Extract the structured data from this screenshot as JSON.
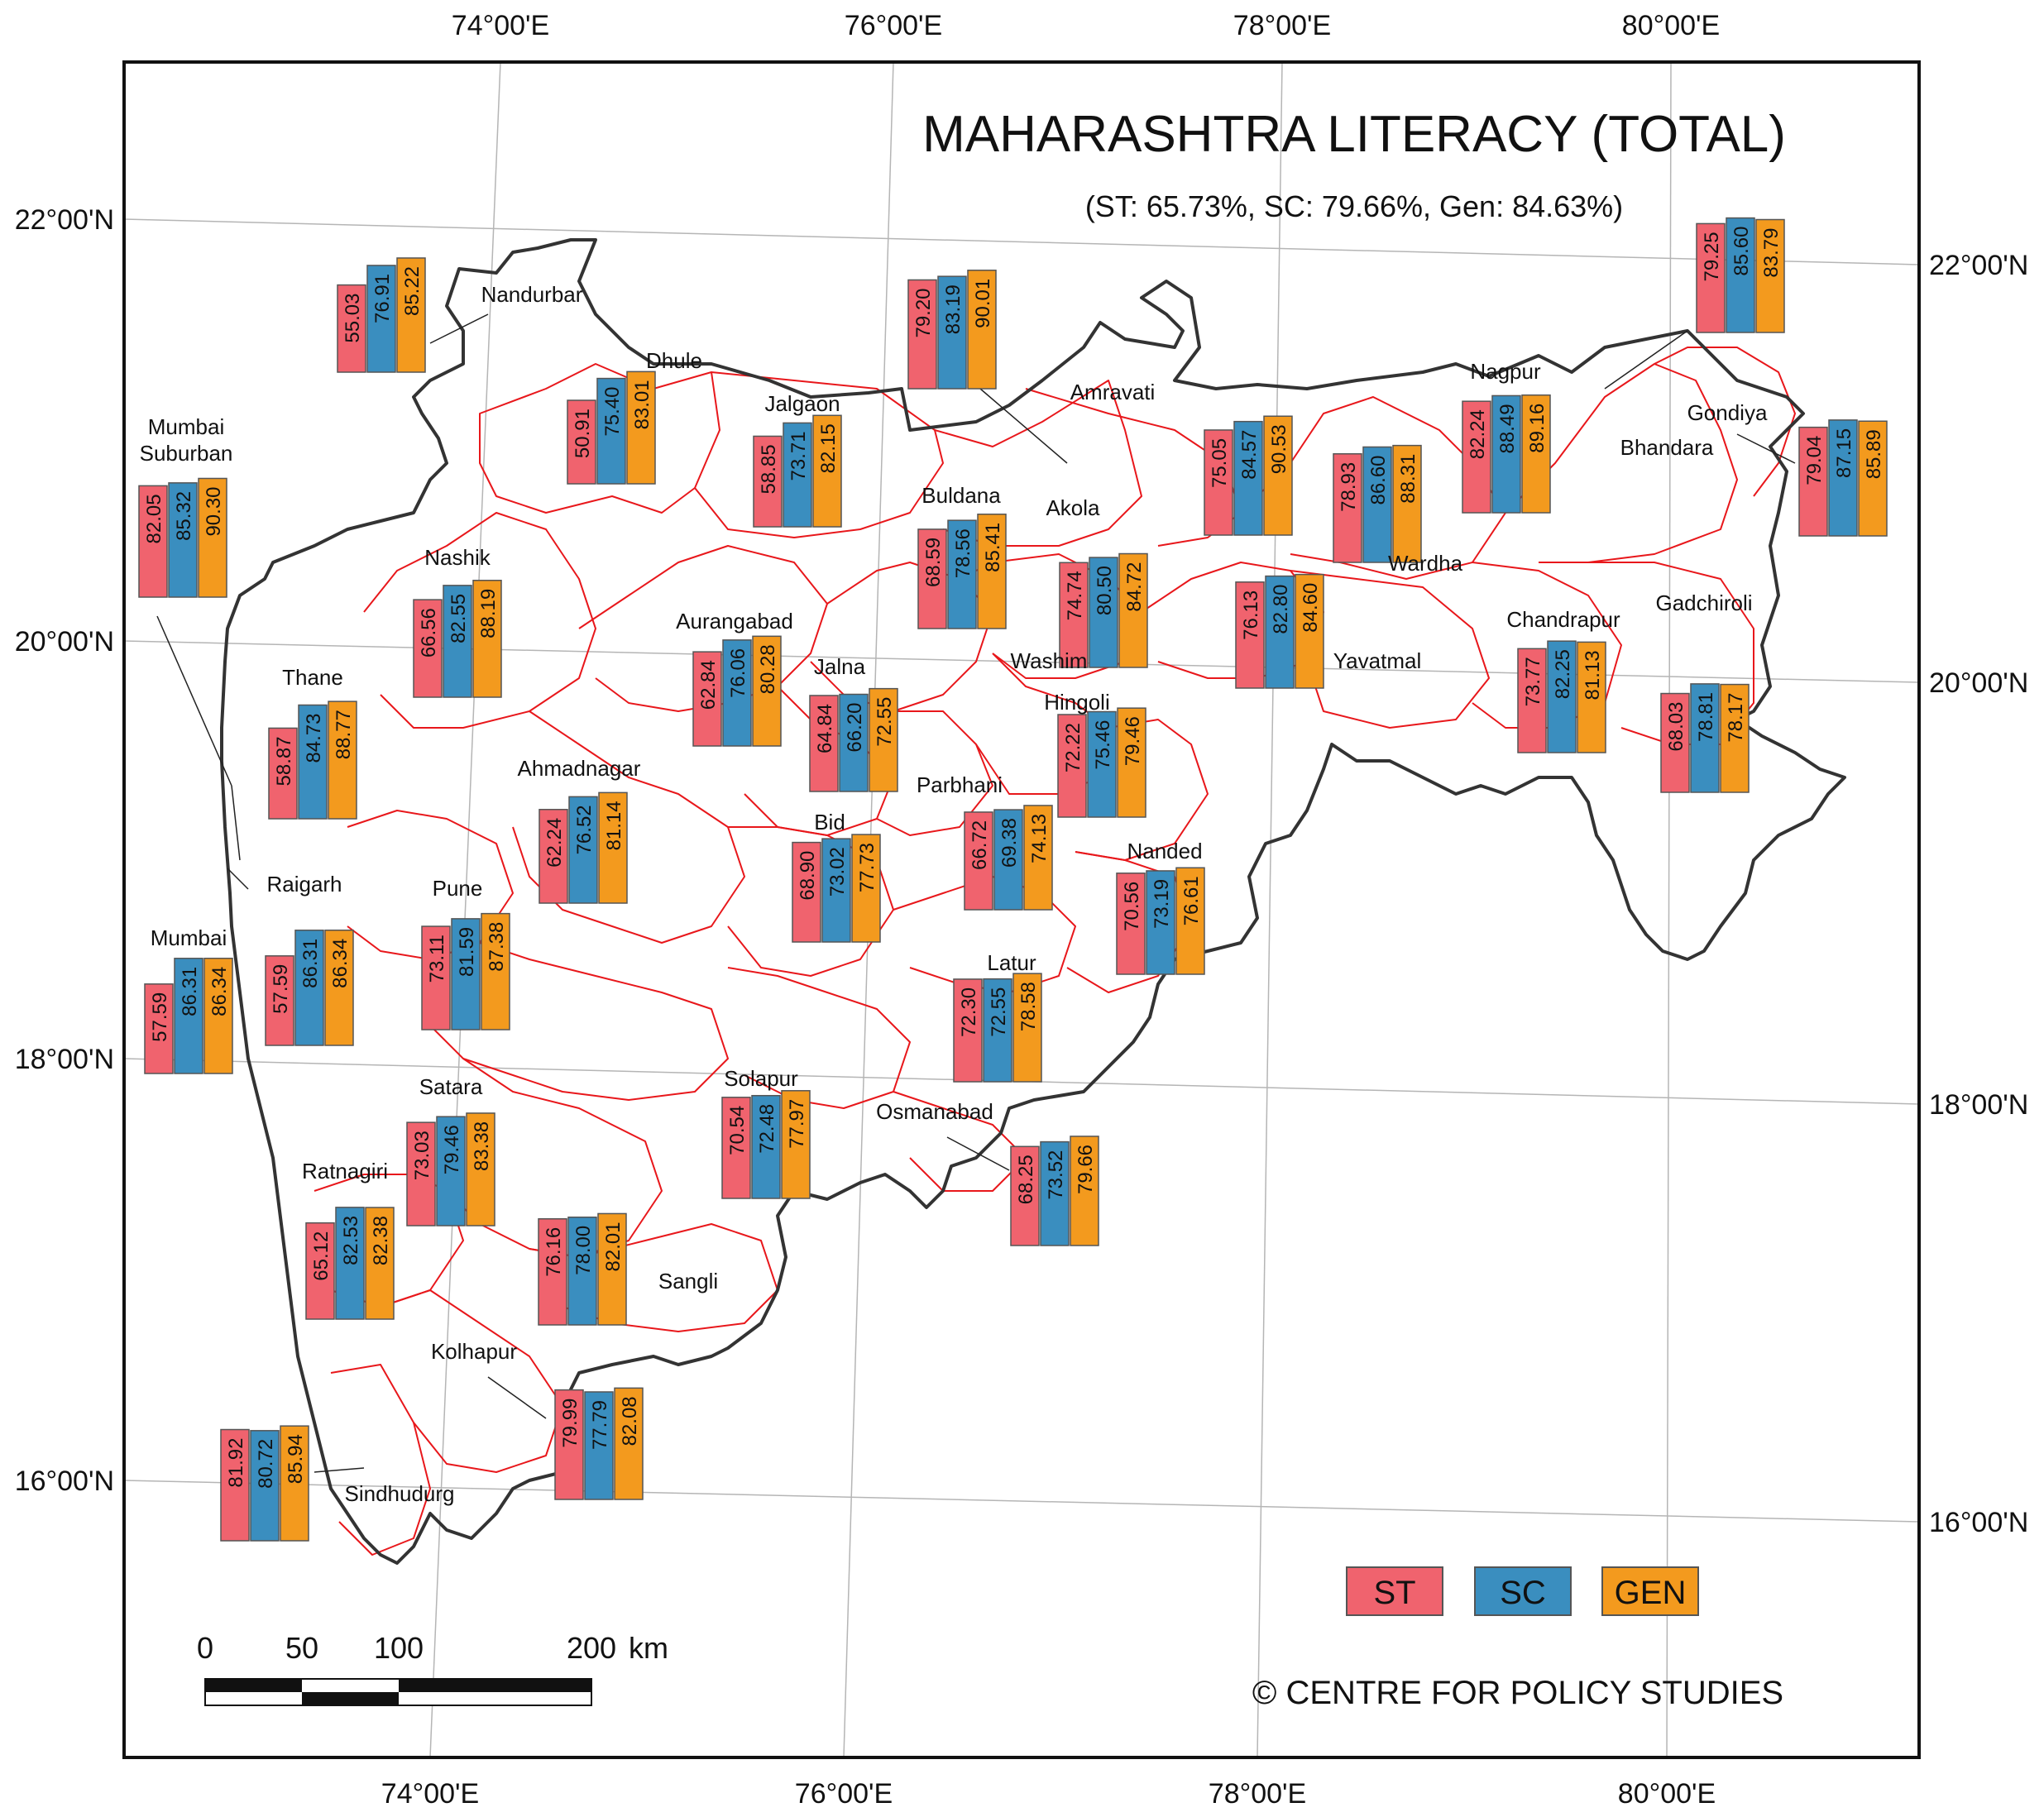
{
  "title": "MAHARASHTRA LITERACY (TOTAL)",
  "subtitle": "(ST: 65.73%, SC: 79.66%, Gen: 84.63%)",
  "credit": "© CENTRE FOR POLICY STUDIES",
  "legend": [
    {
      "label": "ST",
      "color": "#f0636e"
    },
    {
      "label": "SC",
      "color": "#3a8ebf"
    },
    {
      "label": "GEN",
      "color": "#f39a1e"
    }
  ],
  "colors": {
    "st": "#f0636e",
    "sc": "#3a8ebf",
    "gen": "#f39a1e",
    "state_border": "#333333",
    "district_border": "#e8171b",
    "graticule": "#b5b5b5"
  },
  "lon_labels": [
    "74°00'E",
    "76°00'E",
    "78°00'E",
    "80°00'E"
  ],
  "lat_labels": [
    "22°00'N",
    "20°00'N",
    "18°00'N",
    "16°00'N"
  ],
  "scale_bar": {
    "ticks": [
      "0",
      "50",
      "100",
      "200"
    ],
    "unit": "km"
  },
  "districts": [
    {
      "name": "Nandurbar",
      "st": "55.03",
      "sc": "76.91",
      "gen": "85.22"
    },
    {
      "name": "Dhule",
      "st": "50.91",
      "sc": "75.40",
      "gen": "83.01"
    },
    {
      "name": "Jalgaon",
      "st": "58.85",
      "sc": "73.71",
      "gen": "82.15"
    },
    {
      "name": "Amravati",
      "st": "79.20",
      "sc": "83.19",
      "gen": "90.01"
    },
    {
      "name": "Nagpur",
      "st": "82.24",
      "sc": "88.49",
      "gen": "89.16"
    },
    {
      "name": "Bhandara",
      "st": "79.25",
      "sc": "85.60",
      "gen": "83.79"
    },
    {
      "name": "Gondiya",
      "st": "79.04",
      "sc": "87.15",
      "gen": "85.89"
    },
    {
      "name": "Mumbai Suburban",
      "st": "82.05",
      "sc": "85.32",
      "gen": "90.30"
    },
    {
      "name": "Nashik",
      "st": "66.56",
      "sc": "82.55",
      "gen": "88.19"
    },
    {
      "name": "Buldana",
      "st": "68.59",
      "sc": "78.56",
      "gen": "85.41"
    },
    {
      "name": "Akola",
      "st": "75.05",
      "sc": "84.57",
      "gen": "90.53"
    },
    {
      "name": "Wardha",
      "st": "78.93",
      "sc": "86.60",
      "gen": "88.31"
    },
    {
      "name": "Thane",
      "st": "58.87",
      "sc": "84.73",
      "gen": "88.77"
    },
    {
      "name": "Aurangabad",
      "st": "62.84",
      "sc": "76.06",
      "gen": "80.28"
    },
    {
      "name": "Washim",
      "st": "74.74",
      "sc": "80.50",
      "gen": "84.72"
    },
    {
      "name": "Yavatmal",
      "st": "76.13",
      "sc": "82.80",
      "gen": "84.60"
    },
    {
      "name": "Chandrapur",
      "st": "73.77",
      "sc": "82.25",
      "gen": "81.13"
    },
    {
      "name": "Gadchiroli",
      "st": "68.03",
      "sc": "78.81",
      "gen": "78.17"
    },
    {
      "name": "Jalna",
      "st": "64.84",
      "sc": "66.20",
      "gen": "72.55"
    },
    {
      "name": "Hingoli",
      "st": "72.22",
      "sc": "75.46",
      "gen": "79.46"
    },
    {
      "name": "Ahmadnagar",
      "st": "62.24",
      "sc": "76.52",
      "gen": "81.14"
    },
    {
      "name": "Parbhani",
      "st": "66.72",
      "sc": "69.38",
      "gen": "74.13"
    },
    {
      "name": "Bid",
      "st": "68.90",
      "sc": "73.02",
      "gen": "77.73"
    },
    {
      "name": "Nanded",
      "st": "70.56",
      "sc": "73.19",
      "gen": "76.61"
    },
    {
      "name": "Raigarh",
      "st": "57.59",
      "sc": "86.31",
      "gen": "86.34"
    },
    {
      "name": "Mumbai",
      "st": "57.59",
      "sc": "86.31",
      "gen": "86.34"
    },
    {
      "name": "Pune",
      "st": "73.11",
      "sc": "81.59",
      "gen": "87.38"
    },
    {
      "name": "Latur",
      "st": "72.30",
      "sc": "72.55",
      "gen": "78.58"
    },
    {
      "name": "Satara",
      "st": "73.03",
      "sc": "79.46",
      "gen": "83.38"
    },
    {
      "name": "Solapur",
      "st": "70.54",
      "sc": "72.48",
      "gen": "77.97"
    },
    {
      "name": "Osmanabad",
      "st": "68.25",
      "sc": "73.52",
      "gen": "79.66"
    },
    {
      "name": "Ratnagiri",
      "st": "65.12",
      "sc": "82.53",
      "gen": "82.38"
    },
    {
      "name": "Sangli",
      "st": "76.16",
      "sc": "78.00",
      "gen": "82.01"
    },
    {
      "name": "Kolhapur",
      "st": "79.99",
      "sc": "77.79",
      "gen": "82.08"
    },
    {
      "name": "Sindhudurg",
      "st": "81.92",
      "sc": "80.72",
      "gen": "85.94"
    }
  ]
}
